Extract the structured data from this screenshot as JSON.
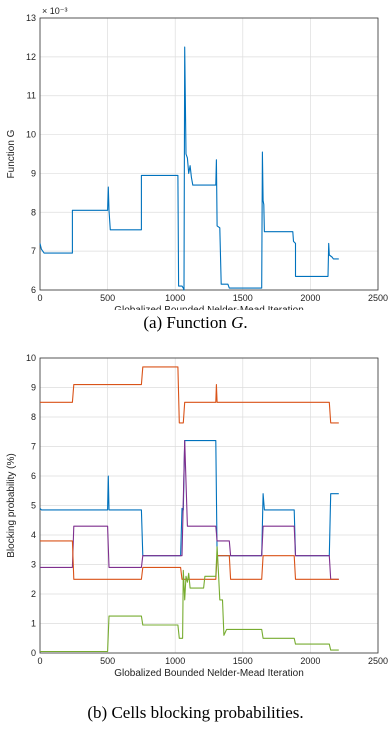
{
  "captions": {
    "a_prefix": "(a) Function ",
    "a_var": "G",
    "a_suffix": ".",
    "b": "(b) Cells blocking probabilities."
  },
  "chart_data": [
    {
      "type": "line",
      "xlabel": "Globalized Bounded Nelder-Mead Iteration",
      "ylabel": "Function G",
      "xlim": [
        0,
        2500
      ],
      "ylim": [
        6,
        13
      ],
      "xticks": [
        0,
        500,
        1000,
        1500,
        2000,
        2500
      ],
      "yticks": [
        6,
        7,
        8,
        9,
        10,
        11,
        12,
        13
      ],
      "exponent_label": "× 10⁻³",
      "grid": true,
      "series": [
        {
          "color": "#0072BD",
          "points": [
            [
              0,
              7.2
            ],
            [
              10,
              7.05
            ],
            [
              30,
              6.95
            ],
            [
              240,
              6.95
            ],
            [
              240,
              8.05
            ],
            [
              500,
              8.05
            ],
            [
              505,
              8.65
            ],
            [
              510,
              8.05
            ],
            [
              520,
              7.55
            ],
            [
              750,
              7.55
            ],
            [
              750,
              8.95
            ],
            [
              1020,
              8.95
            ],
            [
              1025,
              6.1
            ],
            [
              1050,
              6.1
            ],
            [
              1060,
              6.05
            ],
            [
              1065,
              6.0
            ],
            [
              1070,
              12.25
            ],
            [
              1080,
              9.5
            ],
            [
              1090,
              9.4
            ],
            [
              1100,
              9.0
            ],
            [
              1110,
              9.2
            ],
            [
              1120,
              8.9
            ],
            [
              1130,
              8.7
            ],
            [
              1300,
              8.7
            ],
            [
              1305,
              9.35
            ],
            [
              1310,
              7.65
            ],
            [
              1330,
              7.6
            ],
            [
              1340,
              6.15
            ],
            [
              1390,
              6.15
            ],
            [
              1400,
              6.05
            ],
            [
              1640,
              6.05
            ],
            [
              1645,
              9.55
            ],
            [
              1650,
              8.3
            ],
            [
              1655,
              8.2
            ],
            [
              1660,
              7.5
            ],
            [
              1870,
              7.5
            ],
            [
              1875,
              7.25
            ],
            [
              1890,
              7.2
            ],
            [
              1890,
              6.35
            ],
            [
              2130,
              6.35
            ],
            [
              2135,
              7.2
            ],
            [
              2140,
              6.9
            ],
            [
              2160,
              6.85
            ],
            [
              2170,
              6.8
            ],
            [
              2210,
              6.8
            ]
          ]
        }
      ]
    },
    {
      "type": "line",
      "xlabel": "Globalized Bounded Nelder-Mead Iteration",
      "ylabel": "Blocking probability (%)",
      "xlim": [
        0,
        2500
      ],
      "ylim": [
        0,
        10
      ],
      "xticks": [
        0,
        500,
        1000,
        1500,
        2000,
        2500
      ],
      "yticks": [
        0,
        1,
        2,
        3,
        4,
        5,
        6,
        7,
        8,
        9,
        10
      ],
      "grid": true,
      "series": [
        {
          "color": "#D95319",
          "points": [
            [
              0,
              8.5
            ],
            [
              240,
              8.5
            ],
            [
              250,
              9.1
            ],
            [
              750,
              9.1
            ],
            [
              760,
              9.7
            ],
            [
              1020,
              9.7
            ],
            [
              1030,
              7.8
            ],
            [
              1060,
              7.8
            ],
            [
              1070,
              8.5
            ],
            [
              1300,
              8.5
            ],
            [
              1305,
              9.1
            ],
            [
              1310,
              8.5
            ],
            [
              2140,
              8.5
            ],
            [
              2150,
              7.8
            ],
            [
              2210,
              7.8
            ]
          ]
        },
        {
          "color": "#0072BD",
          "points": [
            [
              0,
              4.9
            ],
            [
              10,
              4.85
            ],
            [
              500,
              4.85
            ],
            [
              505,
              6.0
            ],
            [
              510,
              4.85
            ],
            [
              750,
              4.85
            ],
            [
              760,
              3.3
            ],
            [
              1040,
              3.3
            ],
            [
              1050,
              4.9
            ],
            [
              1060,
              4.85
            ],
            [
              1070,
              7.2
            ],
            [
              1300,
              7.2
            ],
            [
              1310,
              3.3
            ],
            [
              1640,
              3.3
            ],
            [
              1650,
              5.4
            ],
            [
              1660,
              4.85
            ],
            [
              1880,
              4.85
            ],
            [
              1890,
              3.3
            ],
            [
              2140,
              3.3
            ],
            [
              2150,
              5.4
            ],
            [
              2210,
              5.4
            ]
          ]
        },
        {
          "color": "#7E2F8E",
          "points": [
            [
              0,
              2.9
            ],
            [
              240,
              2.9
            ],
            [
              250,
              4.3
            ],
            [
              500,
              4.3
            ],
            [
              510,
              2.9
            ],
            [
              750,
              2.9
            ],
            [
              760,
              3.3
            ],
            [
              1050,
              3.3
            ],
            [
              1070,
              7.2
            ],
            [
              1090,
              4.3
            ],
            [
              1300,
              4.3
            ],
            [
              1310,
              3.8
            ],
            [
              1400,
              3.8
            ],
            [
              1410,
              3.3
            ],
            [
              1640,
              3.3
            ],
            [
              1650,
              4.3
            ],
            [
              1880,
              4.3
            ],
            [
              1890,
              3.3
            ],
            [
              2140,
              3.3
            ],
            [
              2150,
              2.5
            ],
            [
              2210,
              2.5
            ]
          ]
        },
        {
          "color": "#D95319",
          "points": [
            [
              0,
              3.8
            ],
            [
              240,
              3.8
            ],
            [
              250,
              2.5
            ],
            [
              750,
              2.5
            ],
            [
              760,
              2.9
            ],
            [
              1040,
              2.9
            ],
            [
              1050,
              2.5
            ],
            [
              1300,
              2.5
            ],
            [
              1310,
              3.3
            ],
            [
              1400,
              3.3
            ],
            [
              1410,
              2.5
            ],
            [
              1640,
              2.5
            ],
            [
              1650,
              3.3
            ],
            [
              1880,
              3.3
            ],
            [
              1890,
              2.5
            ],
            [
              2210,
              2.5
            ]
          ]
        },
        {
          "color": "#77AC30",
          "points": [
            [
              0,
              0.05
            ],
            [
              500,
              0.05
            ],
            [
              510,
              1.25
            ],
            [
              750,
              1.25
            ],
            [
              760,
              0.95
            ],
            [
              1020,
              0.95
            ],
            [
              1030,
              0.5
            ],
            [
              1055,
              0.5
            ],
            [
              1060,
              2.8
            ],
            [
              1070,
              1.8
            ],
            [
              1080,
              2.6
            ],
            [
              1090,
              2.4
            ],
            [
              1100,
              2.7
            ],
            [
              1110,
              2.2
            ],
            [
              1210,
              2.2
            ],
            [
              1220,
              2.6
            ],
            [
              1300,
              2.6
            ],
            [
              1310,
              3.6
            ],
            [
              1320,
              2.7
            ],
            [
              1330,
              1.8
            ],
            [
              1350,
              1.8
            ],
            [
              1360,
              0.6
            ],
            [
              1380,
              0.8
            ],
            [
              1640,
              0.8
            ],
            [
              1650,
              0.5
            ],
            [
              1880,
              0.5
            ],
            [
              1890,
              0.3
            ],
            [
              2140,
              0.3
            ],
            [
              2150,
              0.1
            ],
            [
              2210,
              0.1
            ]
          ]
        }
      ]
    }
  ]
}
